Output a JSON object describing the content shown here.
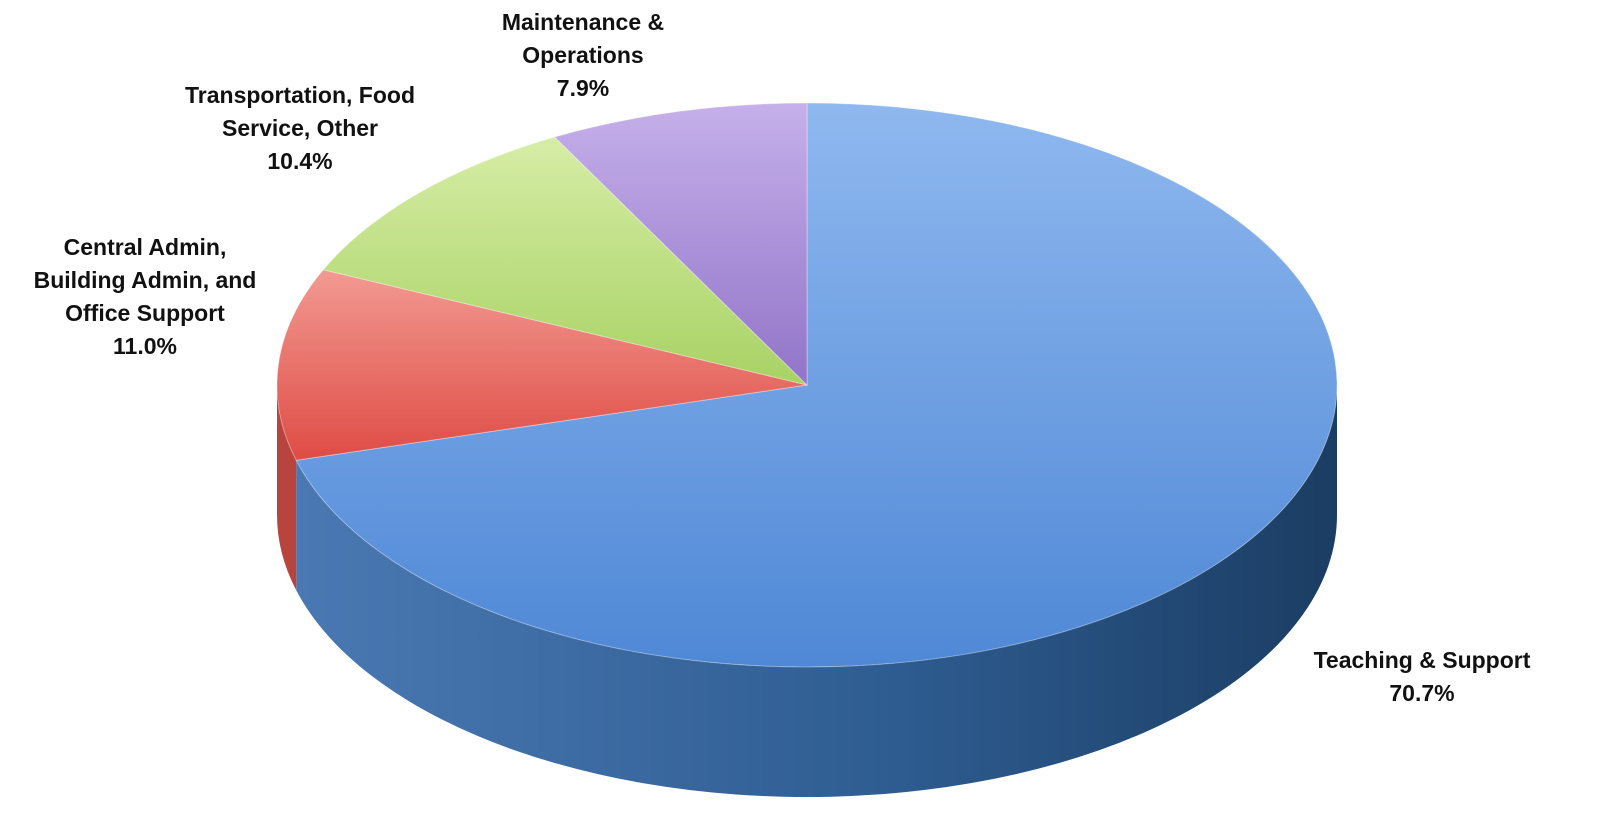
{
  "chart_data": {
    "type": "pie",
    "style": "3d",
    "start": "12 o'clock",
    "direction": "clockwise",
    "slices": [
      {
        "name": "Teaching & Support",
        "value_label": "70.7%",
        "value": 70.7,
        "color": "#5b92dc",
        "label_lines": [
          "Teaching & Support",
          "70.7%"
        ]
      },
      {
        "name": "Central Admin, Building Admin, and Office Support",
        "value_label": "11.0%",
        "value": 11.0,
        "color": "#e8625a",
        "label_lines": [
          "Central Admin,",
          "Building Admin, and",
          "Office Support",
          "11.0%"
        ]
      },
      {
        "name": "Transportation, Food Service, Other",
        "value_label": "10.4%",
        "value": 10.4,
        "color": "#b7dc78",
        "label_lines": [
          "Transportation, Food",
          "Service, Other",
          "10.4%"
        ]
      },
      {
        "name": "Maintenance & Operations",
        "value_label": "7.9%",
        "value": 7.9,
        "color": "#a98bd6",
        "label_lines": [
          "Maintenance &",
          "Operations",
          "7.9%"
        ]
      }
    ]
  }
}
